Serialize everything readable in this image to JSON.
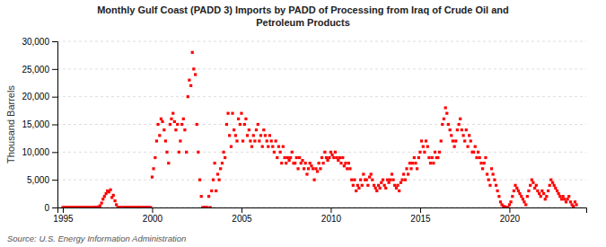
{
  "chart_data": {
    "type": "scatter",
    "title": "Monthly Gulf Coast (PADD 3) Imports by PADD of Processing from Iraq of Crude Oil and\nPetroleum Products",
    "ylabel": "Thousand Barrels",
    "annotations": [
      "Source: U.S. Energy Information Administration"
    ],
    "color": "#FF0000",
    "marker": "square",
    "grid": "y",
    "xlim": [
      1994.7,
      2024.3
    ],
    "xticks": [
      1995,
      2000,
      2005,
      2010,
      2015,
      2020
    ],
    "ylim": [
      0,
      30000
    ],
    "yticks": [
      0,
      {
        "value": 5000,
        "label": "5,000"
      },
      {
        "value": 10000,
        "label": "10,000"
      },
      {
        "value": 15000,
        "label": "15,000"
      },
      {
        "value": 20000,
        "label": "20,000"
      },
      {
        "value": 25000,
        "label": "25,000"
      },
      {
        "value": 30000,
        "label": "30,000"
      }
    ],
    "x": [
      1995.0,
      1995.08,
      1995.17,
      1995.25,
      1995.33,
      1995.42,
      1995.5,
      1995.58,
      1995.67,
      1995.75,
      1995.83,
      1995.92,
      1996.0,
      1996.08,
      1996.17,
      1996.25,
      1996.33,
      1996.42,
      1996.5,
      1996.58,
      1996.67,
      1996.75,
      1996.83,
      1996.92,
      1997.0,
      1997.08,
      1997.17,
      1997.25,
      1997.33,
      1997.42,
      1997.5,
      1997.58,
      1997.67,
      1997.75,
      1997.83,
      1997.92,
      1998.0,
      1998.08,
      1998.17,
      1998.25,
      1998.33,
      1998.42,
      1998.5,
      1998.58,
      1998.67,
      1998.75,
      1998.83,
      1998.92,
      1999.0,
      1999.08,
      1999.17,
      1999.25,
      1999.33,
      1999.42,
      1999.5,
      1999.58,
      1999.67,
      1999.75,
      1999.83,
      1999.92,
      2000.0,
      2000.08,
      2000.17,
      2000.25,
      2000.33,
      2000.42,
      2000.5,
      2000.58,
      2000.67,
      2000.75,
      2000.83,
      2000.92,
      2001.0,
      2001.08,
      2001.17,
      2001.25,
      2001.33,
      2001.42,
      2001.5,
      2001.58,
      2001.67,
      2001.75,
      2001.83,
      2001.92,
      2002.0,
      2002.08,
      2002.17,
      2002.25,
      2002.33,
      2002.42,
      2002.5,
      2002.58,
      2002.67,
      2002.75,
      2002.83,
      2002.92,
      2003.0,
      2003.08,
      2003.17,
      2003.25,
      2003.33,
      2003.42,
      2003.5,
      2003.58,
      2003.67,
      2003.75,
      2003.83,
      2003.92,
      2004.0,
      2004.08,
      2004.17,
      2004.25,
      2004.33,
      2004.42,
      2004.5,
      2004.58,
      2004.67,
      2004.75,
      2004.83,
      2004.92,
      2005.0,
      2005.08,
      2005.17,
      2005.25,
      2005.33,
      2005.42,
      2005.5,
      2005.58,
      2005.67,
      2005.75,
      2005.83,
      2005.92,
      2006.0,
      2006.08,
      2006.17,
      2006.25,
      2006.33,
      2006.42,
      2006.5,
      2006.58,
      2006.67,
      2006.75,
      2006.83,
      2006.92,
      2007.0,
      2007.08,
      2007.17,
      2007.25,
      2007.33,
      2007.42,
      2007.5,
      2007.58,
      2007.67,
      2007.75,
      2007.83,
      2007.92,
      2008.0,
      2008.08,
      2008.17,
      2008.25,
      2008.33,
      2008.42,
      2008.5,
      2008.58,
      2008.67,
      2008.75,
      2008.83,
      2008.92,
      2009.0,
      2009.08,
      2009.17,
      2009.25,
      2009.33,
      2009.42,
      2009.5,
      2009.58,
      2009.67,
      2009.75,
      2009.83,
      2009.92,
      2010.0,
      2010.08,
      2010.17,
      2010.25,
      2010.33,
      2010.42,
      2010.5,
      2010.58,
      2010.67,
      2010.75,
      2010.83,
      2010.92,
      2011.0,
      2011.08,
      2011.17,
      2011.25,
      2011.33,
      2011.42,
      2011.5,
      2011.58,
      2011.67,
      2011.75,
      2011.83,
      2011.92,
      2012.0,
      2012.08,
      2012.17,
      2012.25,
      2012.33,
      2012.42,
      2012.5,
      2012.58,
      2012.67,
      2012.75,
      2012.83,
      2012.92,
      2013.0,
      2013.08,
      2013.17,
      2013.25,
      2013.33,
      2013.42,
      2013.5,
      2013.58,
      2013.67,
      2013.75,
      2013.83,
      2013.92,
      2014.0,
      2014.08,
      2014.17,
      2014.25,
      2014.33,
      2014.42,
      2014.5,
      2014.58,
      2014.67,
      2014.75,
      2014.83,
      2014.92,
      2015.0,
      2015.08,
      2015.17,
      2015.25,
      2015.33,
      2015.42,
      2015.5,
      2015.58,
      2015.67,
      2015.75,
      2015.83,
      2015.92,
      2016.0,
      2016.08,
      2016.17,
      2016.25,
      2016.33,
      2016.42,
      2016.5,
      2016.58,
      2016.67,
      2016.75,
      2016.83,
      2016.92,
      2017.0,
      2017.08,
      2017.17,
      2017.25,
      2017.33,
      2017.42,
      2017.5,
      2017.58,
      2017.67,
      2017.75,
      2017.83,
      2017.92,
      2018.0,
      2018.08,
      2018.17,
      2018.25,
      2018.33,
      2018.42,
      2018.5,
      2018.58,
      2018.67,
      2018.75,
      2018.83,
      2018.92,
      2019.0,
      2019.08,
      2019.17,
      2019.25,
      2019.33,
      2019.42,
      2019.5,
      2019.58,
      2019.67,
      2019.75,
      2019.83,
      2019.92,
      2020.0,
      2020.08,
      2020.17,
      2020.25,
      2020.33,
      2020.42,
      2020.5,
      2020.58,
      2020.67,
      2020.75,
      2020.83,
      2020.92,
      2021.0,
      2021.08,
      2021.17,
      2021.25,
      2021.33,
      2021.42,
      2021.5,
      2021.58,
      2021.67,
      2021.75,
      2021.83,
      2021.92,
      2022.0,
      2022.08,
      2022.17,
      2022.25,
      2022.33,
      2022.42,
      2022.5,
      2022.58,
      2022.67,
      2022.75,
      2022.83,
      2022.92,
      2023.0,
      2023.08,
      2023.17,
      2023.25,
      2023.33,
      2023.42,
      2023.5,
      2023.58,
      2023.67,
      2023.75
    ],
    "values": [
      0,
      0,
      0,
      0,
      0,
      0,
      0,
      0,
      0,
      0,
      0,
      0,
      0,
      0,
      0,
      0,
      0,
      0,
      0,
      0,
      0,
      0,
      50,
      0,
      100,
      300,
      800,
      1500,
      2000,
      2500,
      3000,
      2800,
      3200,
      1800,
      2200,
      1200,
      500,
      0,
      0,
      0,
      0,
      0,
      0,
      0,
      0,
      0,
      0,
      0,
      0,
      0,
      0,
      0,
      0,
      0,
      0,
      0,
      0,
      0,
      0,
      0,
      5500,
      7000,
      9000,
      12000,
      15000,
      13000,
      16000,
      15500,
      14000,
      12000,
      10000,
      8000,
      15000,
      16000,
      17000,
      15500,
      14000,
      15000,
      10000,
      12000,
      15000,
      16000,
      14000,
      10000,
      20000,
      23000,
      22000,
      28000,
      25000,
      24000,
      15000,
      10000,
      5000,
      2000,
      0,
      0,
      0,
      0,
      2000,
      0,
      3000,
      5000,
      8000,
      3000,
      6000,
      5000,
      7000,
      8000,
      10000,
      9000,
      15000,
      17000,
      13000,
      11000,
      17000,
      14000,
      13000,
      12000,
      16000,
      15000,
      17000,
      12000,
      15000,
      16000,
      13000,
      14000,
      12000,
      11000,
      13000,
      12000,
      14000,
      15000,
      12000,
      13000,
      11000,
      14000,
      13000,
      12000,
      11000,
      13000,
      12000,
      11000,
      10000,
      12000,
      9000,
      11000,
      10000,
      8000,
      11000,
      9000,
      8000,
      9000,
      8500,
      9000,
      10000,
      8000,
      8000,
      9000,
      7000,
      9000,
      8000,
      8500,
      7000,
      8000,
      6000,
      7000,
      8000,
      7500,
      7000,
      5000,
      7000,
      6500,
      8000,
      7000,
      9000,
      8000,
      10000,
      9000,
      8500,
      9000,
      10000,
      9500,
      9000,
      10000,
      9000,
      8500,
      9000,
      8000,
      9000,
      7500,
      8000,
      7000,
      8000,
      7000,
      5000,
      4000,
      5000,
      3000,
      4000,
      3500,
      5000,
      4000,
      6000,
      5000,
      5000,
      4000,
      5500,
      6000,
      5000,
      4000,
      3500,
      3000,
      4000,
      3500,
      4500,
      5000,
      4000,
      3500,
      5000,
      4500,
      5000,
      6000,
      5000,
      4000,
      3500,
      4000,
      3000,
      4500,
      5000,
      6000,
      5000,
      7000,
      6000,
      8000,
      7000,
      8000,
      9000,
      8000,
      7000,
      9000,
      10000,
      12000,
      11000,
      10000,
      12000,
      11000,
      9000,
      8000,
      9000,
      8000,
      10000,
      9000,
      9000,
      10000,
      12000,
      15000,
      16000,
      18000,
      17000,
      15000,
      14000,
      13000,
      12000,
      11000,
      12000,
      14000,
      15000,
      16000,
      14000,
      13000,
      12000,
      14000,
      11000,
      13000,
      12000,
      10000,
      10000,
      11000,
      9000,
      10000,
      9000,
      8000,
      7000,
      8000,
      9000,
      6000,
      5000,
      4000,
      7000,
      6000,
      5000,
      4000,
      3000,
      2000,
      1000,
      500,
      200,
      100,
      0,
      0,
      500,
      1000,
      2000,
      3000,
      4000,
      3500,
      3000,
      2500,
      2000,
      1500,
      1000,
      500,
      2000,
      3000,
      4000,
      5000,
      4500,
      3500,
      4000,
      3000,
      2500,
      2000,
      3000,
      2500,
      1500,
      2000,
      3000,
      4000,
      5000,
      4500,
      4000,
      3500,
      3000,
      2500,
      2000,
      1500,
      2000,
      1500,
      1000,
      1500,
      2000,
      1000,
      500,
      200,
      1000,
      500
    ]
  }
}
